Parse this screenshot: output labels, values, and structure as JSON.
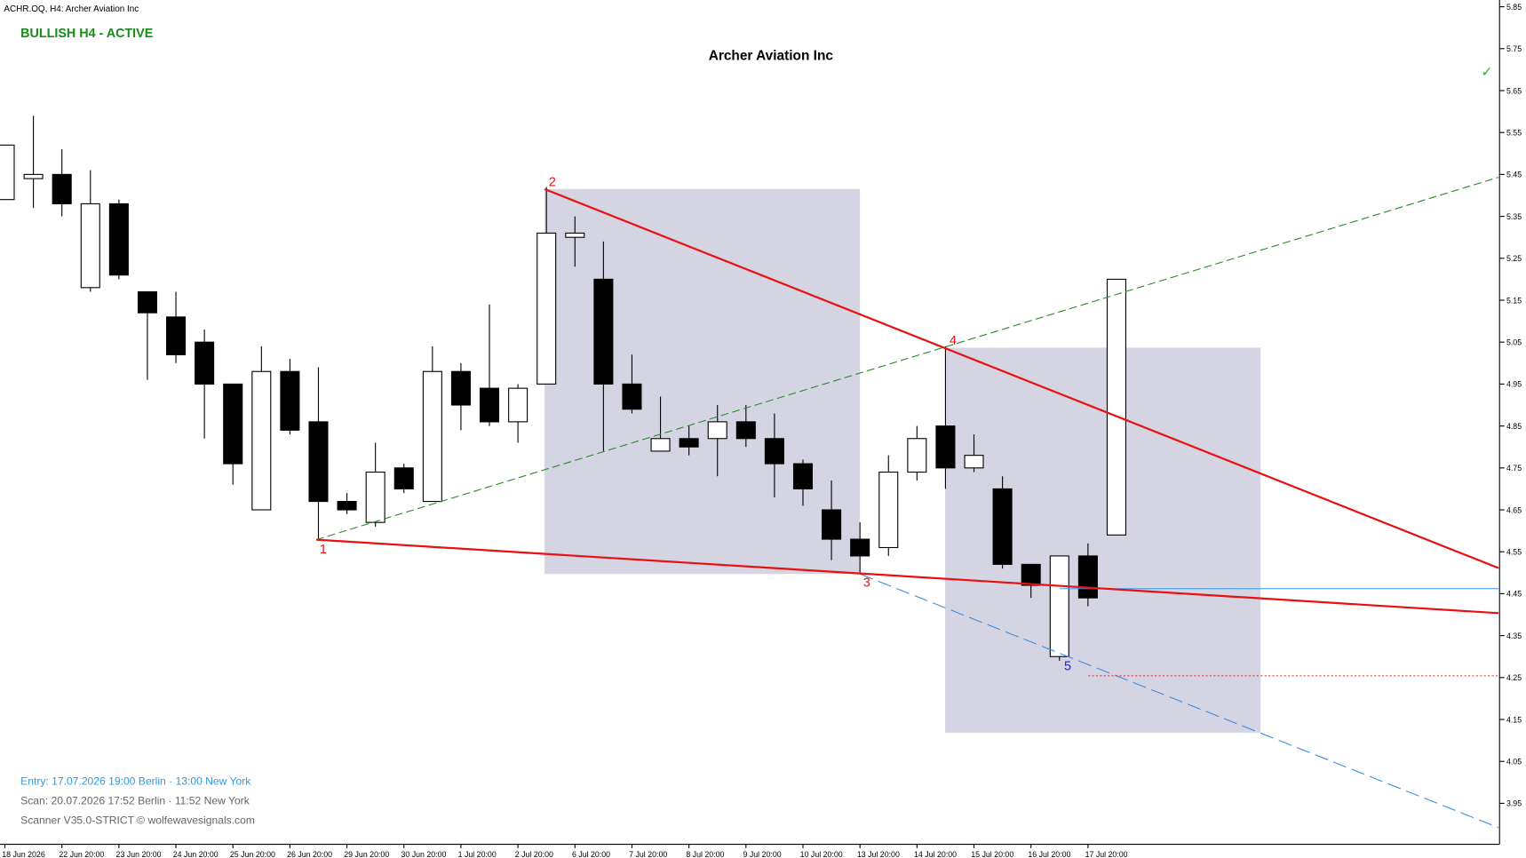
{
  "chart_data": {
    "type": "candlestick",
    "header": "ACHR.OQ, H4:  Archer Aviation Inc",
    "status": "BULLISH H4 - ACTIVE",
    "title": "Archer Aviation Inc",
    "status_icon": "✓",
    "wave_points": [
      "1",
      "2",
      "3",
      "4",
      "5"
    ],
    "footer": [
      "Entry: 17.07.2026  19:00 Berlin · 13:00 New York",
      "Scan:  20.07.2026  17:52 Berlin · 11:52 New York",
      "Scanner V35.0-STRICT  © wolfewavesignals.com"
    ],
    "categories": [
      "18 Jun 2026",
      null,
      "22 Jun 20:00",
      null,
      "23 Jun 20:00",
      null,
      "24 Jun 20:00",
      null,
      "25 Jun 20:00",
      null,
      "26 Jun 20:00",
      null,
      "29 Jun 20:00",
      null,
      "30 Jun 20:00",
      null,
      "1 Jul 20:00",
      null,
      "2 Jul 20:00",
      null,
      "6 Jul 20:00",
      null,
      "7 Jul 20:00",
      null,
      "8 Jul 20:00",
      null,
      "9 Jul 20:00",
      null,
      "10 Jul 20:00",
      null,
      "13 Jul 20:00",
      null,
      "14 Jul 20:00",
      null,
      "15 Jul 20:00",
      null,
      "16 Jul 20:00",
      null,
      "17 Jul 20:00",
      null
    ],
    "open": [
      5.39,
      5.44,
      5.45,
      5.18,
      5.38,
      5.17,
      5.11,
      5.05,
      4.95,
      4.65,
      4.98,
      4.86,
      4.67,
      4.62,
      4.75,
      4.67,
      4.98,
      4.94,
      4.86,
      4.95,
      5.3,
      5.2,
      4.95,
      4.79,
      4.82,
      4.82,
      4.86,
      4.82,
      4.76,
      4.65,
      4.58,
      4.56,
      4.74,
      4.85,
      4.75,
      4.7,
      4.52,
      4.3,
      4.54,
      4.59
    ],
    "high": [
      5.52,
      5.59,
      5.51,
      5.46,
      5.39,
      5.17,
      5.17,
      5.08,
      4.95,
      5.04,
      5.01,
      4.99,
      4.69,
      4.81,
      4.76,
      5.04,
      5.0,
      5.14,
      4.95,
      5.42,
      5.35,
      5.29,
      5.02,
      4.92,
      4.85,
      4.9,
      4.9,
      4.88,
      4.77,
      4.72,
      4.62,
      4.78,
      4.85,
      5.04,
      4.83,
      4.73,
      4.52,
      4.54,
      4.57,
      5.2
    ],
    "low": [
      5.39,
      5.37,
      5.35,
      5.17,
      5.2,
      4.96,
      5.0,
      4.82,
      4.71,
      4.65,
      4.83,
      4.58,
      4.64,
      4.61,
      4.69,
      4.67,
      4.84,
      4.85,
      4.81,
      4.95,
      5.23,
      4.79,
      4.88,
      4.79,
      4.78,
      4.73,
      4.8,
      4.68,
      4.66,
      4.53,
      4.5,
      4.54,
      4.72,
      4.7,
      4.74,
      4.51,
      4.44,
      4.29,
      4.42,
      4.59
    ],
    "close": [
      5.52,
      5.45,
      5.38,
      5.38,
      5.21,
      5.12,
      5.02,
      4.95,
      4.76,
      4.98,
      4.84,
      4.67,
      4.65,
      4.74,
      4.7,
      4.98,
      4.9,
      4.86,
      4.94,
      5.31,
      5.31,
      4.95,
      4.89,
      4.82,
      4.8,
      4.86,
      4.82,
      4.76,
      4.7,
      4.58,
      4.54,
      4.74,
      4.82,
      4.75,
      4.78,
      4.52,
      4.47,
      4.54,
      4.44,
      5.2
    ],
    "up_color": "#ffffff",
    "down_color": "#000000",
    "ylim": [
      3.85,
      5.866
    ],
    "yticks": [
      5.85,
      5.75,
      5.65,
      5.55,
      5.45,
      5.35,
      5.25,
      5.15,
      5.05,
      4.95,
      4.85,
      4.75,
      4.65,
      4.55,
      4.45,
      4.35,
      4.25,
      4.15,
      4.05,
      3.95
    ],
    "grid": false
  }
}
